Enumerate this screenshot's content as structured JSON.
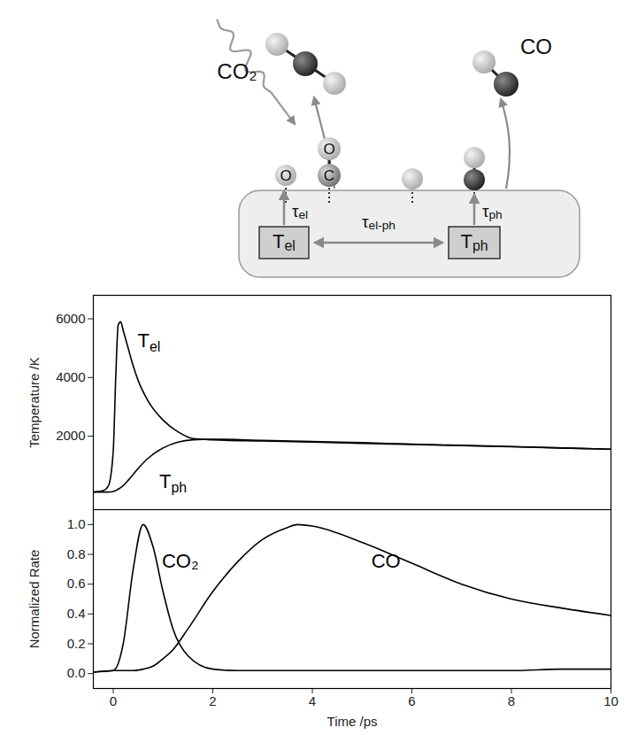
{
  "diagram": {
    "products": [
      "CO₂",
      "CO"
    ],
    "atom_labels": [
      "O",
      "O",
      "C"
    ],
    "baths": [
      "Tel",
      "Tph"
    ],
    "times": [
      "τel",
      "τel-ph",
      "τph"
    ]
  },
  "chart_data": [
    {
      "type": "line",
      "ylabel": "Temperature /K",
      "xlim": [
        -0.4,
        10
      ],
      "xticks": [
        0,
        2,
        4,
        6,
        8,
        10
      ],
      "ylim": [
        -500,
        6800
      ],
      "yticks": [
        2000,
        4000,
        6000
      ],
      "tick_labels": "y",
      "grid": false,
      "x": [
        -0.4,
        -0.2,
        -0.1,
        0,
        0.05,
        0.1,
        0.15,
        0.2,
        0.3,
        0.4,
        0.5,
        0.7,
        1,
        1.3,
        1.6,
        2,
        3,
        4,
        5,
        6,
        7,
        8,
        9,
        10
      ],
      "series": [
        {
          "name": "Tel",
          "color": "#000000",
          "values": [
            100,
            150,
            300,
            1500,
            4000,
            5800,
            5900,
            5600,
            5000,
            4400,
            3900,
            3200,
            2550,
            2150,
            1920,
            1880,
            1840,
            1800,
            1760,
            1720,
            1680,
            1640,
            1600,
            1560
          ]
        },
        {
          "name": "Tph",
          "color": "#000000",
          "values": [
            100,
            100,
            100,
            120,
            150,
            200,
            250,
            320,
            500,
            700,
            900,
            1250,
            1600,
            1800,
            1880,
            1900,
            1860,
            1820,
            1780,
            1730,
            1690,
            1650,
            1600,
            1560
          ]
        }
      ]
    },
    {
      "type": "line",
      "xlabel": "Time /ps",
      "ylabel": "Normalized Rate",
      "xlim": [
        -0.4,
        10
      ],
      "xticks": [
        0,
        2,
        4,
        6,
        8,
        10
      ],
      "ylim": [
        -0.1,
        1.1
      ],
      "yticks": [
        {
          "value": 0,
          "label": "0.0"
        },
        {
          "value": 0.2,
          "label": "0.2"
        },
        {
          "value": 0.4,
          "label": "0.4"
        },
        {
          "value": 0.6,
          "label": "0.6"
        },
        {
          "value": 0.8,
          "label": "0.8"
        },
        {
          "value": 1,
          "label": "1.0"
        }
      ],
      "grid": false,
      "x": [
        -0.4,
        0,
        0.2,
        0.4,
        0.6,
        0.8,
        1,
        1.2,
        1.5,
        2,
        2.5,
        3,
        3.5,
        3.7,
        4,
        5,
        6,
        7,
        8,
        9,
        10
      ],
      "series": [
        {
          "name": "CO₂",
          "color": "#000000",
          "values": [
            0.01,
            0.02,
            0.2,
            0.7,
            1.0,
            0.85,
            0.55,
            0.3,
            0.12,
            0.03,
            0.02,
            0.02,
            0.02,
            0.02,
            0.02,
            0.02,
            0.02,
            0.02,
            0.02,
            0.03,
            0.03
          ]
        },
        {
          "name": "CO",
          "color": "#000000",
          "values": [
            0.01,
            0.02,
            0.02,
            0.02,
            0.03,
            0.05,
            0.1,
            0.16,
            0.3,
            0.55,
            0.75,
            0.9,
            0.98,
            1.0,
            0.99,
            0.88,
            0.74,
            0.6,
            0.5,
            0.44,
            0.39
          ]
        }
      ]
    }
  ]
}
